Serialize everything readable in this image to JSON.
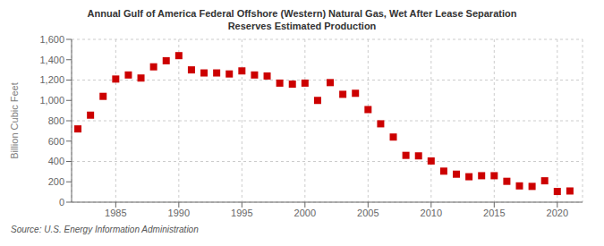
{
  "chart_data": {
    "type": "scatter",
    "title": "Annual Gulf of America Federal Offshore (Western) Natural Gas, Wet After Lease Separation\nReserves Estimated Production",
    "ylabel": "Billion Cubic Feet",
    "annotation": "Source: U.S. Energy Information Administration",
    "x": [
      1982,
      1983,
      1984,
      1985,
      1986,
      1987,
      1988,
      1989,
      1990,
      1991,
      1992,
      1993,
      1994,
      1995,
      1996,
      1997,
      1998,
      1999,
      2000,
      2001,
      2002,
      2003,
      2004,
      2005,
      2006,
      2007,
      2008,
      2009,
      2010,
      2011,
      2012,
      2013,
      2014,
      2015,
      2016,
      2017,
      2018,
      2019,
      2020,
      2021
    ],
    "values": [
      720,
      855,
      1040,
      1210,
      1250,
      1220,
      1330,
      1390,
      1440,
      1300,
      1270,
      1270,
      1260,
      1290,
      1250,
      1240,
      1170,
      1160,
      1170,
      1000,
      1175,
      1060,
      1070,
      910,
      770,
      640,
      460,
      455,
      405,
      305,
      275,
      250,
      260,
      260,
      205,
      160,
      155,
      210,
      105,
      110
    ],
    "color": "#cc0000",
    "marker": "square",
    "xlim": [
      1981.5,
      2022
    ],
    "xticks": [
      1985,
      1990,
      1995,
      2000,
      2005,
      2010,
      2015,
      2020
    ],
    "ylim": [
      0,
      1600
    ],
    "yticks": [
      0,
      200,
      400,
      600,
      800,
      {
        "value": 1000,
        "label": "1,000"
      },
      {
        "value": 1200,
        "label": "1,200"
      },
      {
        "value": 1400,
        "label": "1,400"
      },
      {
        "value": 1600,
        "label": "1,600"
      }
    ],
    "grid": true
  }
}
